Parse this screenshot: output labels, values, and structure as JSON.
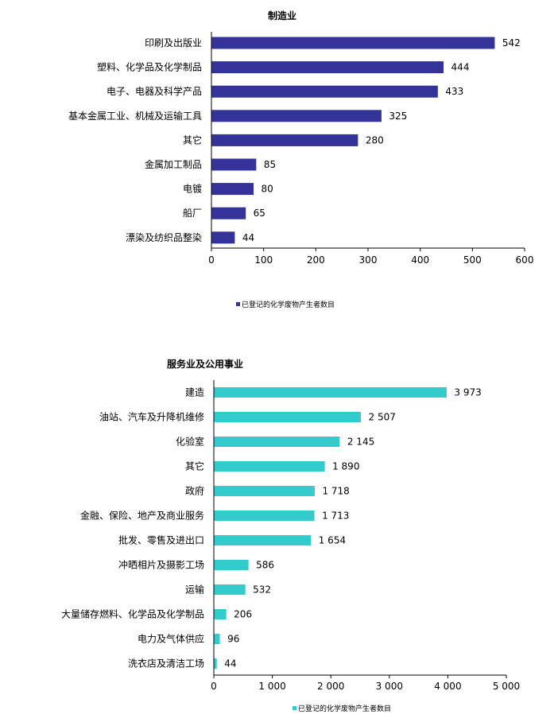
{
  "chart_data": [
    {
      "type": "bar",
      "orientation": "horizontal",
      "title": "制造业",
      "categories": [
        "印刷及出版业",
        "塑料、化学品及化学制品",
        "电子、电器及科学产品",
        "基本金属工业、机械及运输工具",
        "其它",
        "金属加工制品",
        "电镀",
        "船厂",
        "漂染及纺织品整染"
      ],
      "series": [
        {
          "name": "已登记的化学废物产生者数目",
          "values": [
            542,
            444,
            433,
            325,
            280,
            85,
            80,
            65,
            44
          ],
          "color": "#333399"
        }
      ],
      "value_labels": [
        "542",
        "444",
        "433",
        "325",
        "280",
        "85",
        "80",
        "65",
        "44"
      ],
      "xlim": [
        0,
        600
      ],
      "xticks": [
        0,
        100,
        200,
        300,
        400,
        500,
        600
      ],
      "xtick_labels": [
        "0",
        "100",
        "200",
        "300",
        "400",
        "500",
        "600"
      ],
      "grid": false,
      "legend_position": "bottom"
    },
    {
      "type": "bar",
      "orientation": "horizontal",
      "title": "服务业及公用事业",
      "categories": [
        "建造",
        "油站、汽车及升降机维修",
        "化验室",
        "其它",
        "政府",
        "金融、保险、地产及商业服务",
        "批发、零售及进出口",
        "冲晒相片及摄影工场",
        "运输",
        "大量储存燃料、化学品及化学制品",
        "电力及气体供应",
        "洗衣店及清洁工场"
      ],
      "series": [
        {
          "name": "已登记的化学废物产生者数目",
          "values": [
            3973,
            2507,
            2145,
            1890,
            1718,
            1713,
            1654,
            586,
            532,
            206,
            96,
            44
          ],
          "color": "#33CCCC"
        }
      ],
      "value_labels": [
        "3 973",
        "2 507",
        "2 145",
        "1 890",
        "1 718",
        "1 713",
        "1 654",
        "586",
        "532",
        "206",
        "96",
        "44"
      ],
      "xlim": [
        0,
        5000
      ],
      "xticks": [
        0,
        1000,
        2000,
        3000,
        4000,
        5000
      ],
      "xtick_labels": [
        "0",
        "1 000",
        "2 000",
        "3 000",
        "4 000",
        "5 000"
      ],
      "grid": false,
      "legend_position": "bottom"
    }
  ]
}
